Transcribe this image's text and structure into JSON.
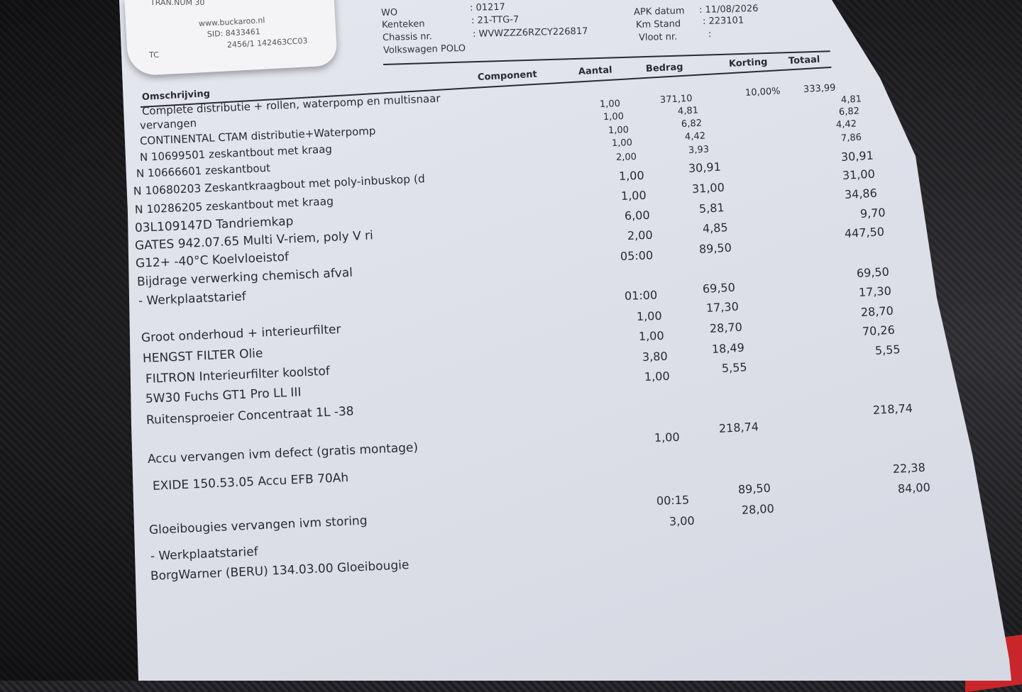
{
  "receipt": {
    "tran_num": "TRAN.NUM 30",
    "website": "www.buckaroo.nl",
    "sid": "SID: 8433461",
    "code": "2456/1 142463CC03",
    "tc": "TC"
  },
  "vehicle": {
    "wo_label": "WO",
    "wo_value": ": 01217",
    "kenteken_label": "Kenteken",
    "kenteken_value": ": 21-TTG-7",
    "chassis_label": "Chassis nr.",
    "chassis_value": ": WVWZZZ6RZCY226817",
    "model": "Volkswagen POLO",
    "apk_label": "APK datum",
    "apk_value": ": 11/08/2026",
    "km_label": "Km Stand",
    "km_value": ": 223101",
    "vloot_label": "Vloot nr.",
    "vloot_value": ":"
  },
  "columns": {
    "omschrijving": "Omschrijving",
    "component": "Component",
    "aantal": "Aantal",
    "bedrag": "Bedrag",
    "korting": "Korting",
    "totaal": "Totaal"
  },
  "descriptions": [
    "Complete distributie + rollen, waterpomp en multisnaar",
    "vervangen",
    "CONTINENTAL CTAM  distributie+Waterpomp",
    "N  10699501 zeskantbout met kraag",
    "N  10666601 zeskantbout",
    "N  10680203 Zeskantkraagbout met poly-inbuskop (d",
    "N  10286205 zeskantbout met kraag",
    "03L109147D  Tandriemkap",
    "GATES  942.07.65  Multi V-riem, poly V ri",
    "G12+ -40°C Koelvloeistof",
    "Bijdrage verwerking chemisch afval",
    "- Werkplaatstarief",
    "Groot onderhoud + interieurfilter",
    "HENGST FILTER  Olie",
    "FILTRON   Interieurfilter koolstof",
    "5W30 Fuchs GT1 Pro LL III",
    "Ruitensproeier Concentraat 1L -38",
    "Accu vervangen ivm defect (gratis montage)",
    "EXIDE  150.53.05 Accu  EFB 70Ah",
    "Gloeibougies vervangen ivm storing",
    "- Werkplaatstarief",
    "BorgWarner (BERU)  134.03.00  Gloeibougie"
  ],
  "aantal": [
    "1,00",
    "1,00",
    "1,00",
    "1,00",
    "2,00",
    "1,00",
    "1,00",
    "6,00",
    "2,00",
    "05:00",
    "01:00",
    "1,00",
    "1,00",
    "3,80",
    "1,00",
    "1,00",
    "00:15",
    "3,00"
  ],
  "bedrag": [
    "371,10",
    "4,81",
    "6,82",
    "4,42",
    "3,93",
    "30,91",
    "31,00",
    "5,81",
    "4,85",
    "89,50",
    "69,50",
    "17,30",
    "28,70",
    "18,49",
    "5,55",
    "218,74",
    "89,50",
    "28,00"
  ],
  "korting": [
    "10,00%"
  ],
  "totaal": [
    "333,99",
    "4,81",
    "6,82",
    "4,42",
    "7,86",
    "30,91",
    "31,00",
    "34,86",
    "9,70",
    "447,50",
    "69,50",
    "17,30",
    "28,70",
    "70,26",
    "5,55",
    "218,74",
    "22,38",
    "84,00"
  ]
}
